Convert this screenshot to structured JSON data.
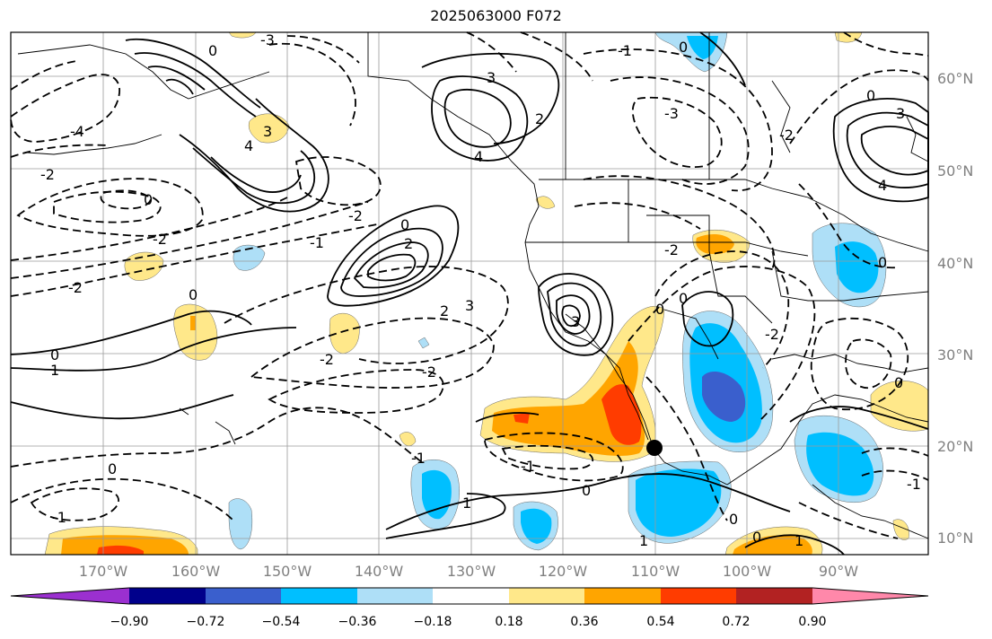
{
  "title": "2025063000 F072",
  "map": {
    "lat_labels": [
      "60°N",
      "50°N",
      "40°N",
      "30°N",
      "20°N",
      "10°N"
    ],
    "lon_labels": [
      "170°W",
      "160°W",
      "150°W",
      "140°W",
      "130°W",
      "120°W",
      "110°W",
      "100°W",
      "90°W"
    ],
    "contour_labels": [
      "-3",
      "-2",
      "-1",
      "0",
      "1",
      "2",
      "3",
      "4",
      "-4"
    ],
    "marker": "tropical-cyclone-marker"
  },
  "colorbar": {
    "ticks": [
      "−0.90",
      "−0.72",
      "−0.54",
      "−0.36",
      "−0.18",
      "0.18",
      "0.36",
      "0.54",
      "0.72",
      "0.90"
    ],
    "colors": [
      "#9b30d0",
      "#00008b",
      "#3a5fcd",
      "#00bfff",
      "#aedff7",
      "#ffffff",
      "#ffe88a",
      "#ffa500",
      "#ff3c00",
      "#b22222",
      "#ff88aa"
    ]
  }
}
